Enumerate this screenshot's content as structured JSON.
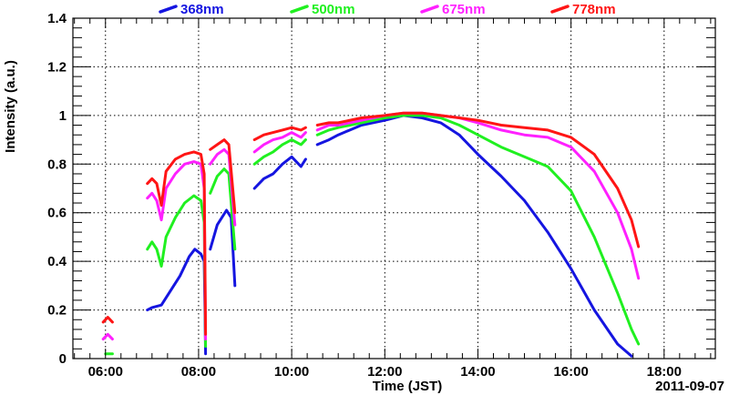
{
  "chart_data": {
    "type": "line",
    "title": "",
    "xlabel": "Time (JST)",
    "ylabel": "Intensity (a.u.)",
    "date_label": "2011-09-07",
    "x_unit": "hours",
    "xlim": [
      5.3,
      19.1
    ],
    "ylim": [
      0,
      1.4
    ],
    "x_ticks": [
      6,
      8,
      10,
      12,
      14,
      16,
      18
    ],
    "x_tick_labels": [
      "06:00",
      "08:00",
      "10:00",
      "12:00",
      "14:00",
      "16:00",
      "18:00"
    ],
    "y_ticks": [
      0,
      0.2,
      0.4,
      0.6,
      0.8,
      1,
      1.2,
      1.4
    ],
    "y_tick_labels": [
      "0",
      "0.2",
      "0.4",
      "0.6",
      "0.8",
      "1",
      "1.2",
      "1.4"
    ],
    "grid": true,
    "legend_position": "top",
    "series": [
      {
        "name": "368nm",
        "color": "#1515e0",
        "segments": [
          [
            [
              6.9,
              0.2
            ],
            [
              7.0,
              0.21
            ],
            [
              7.2,
              0.22
            ],
            [
              7.4,
              0.28
            ],
            [
              7.6,
              0.34
            ],
            [
              7.8,
              0.42
            ],
            [
              7.92,
              0.45
            ],
            [
              8.05,
              0.43
            ],
            [
              8.12,
              0.4
            ],
            [
              8.15,
              0.02
            ]
          ],
          [
            [
              8.25,
              0.45
            ],
            [
              8.4,
              0.55
            ],
            [
              8.6,
              0.61
            ],
            [
              8.7,
              0.58
            ],
            [
              8.78,
              0.3
            ]
          ],
          [
            [
              9.2,
              0.7
            ],
            [
              9.4,
              0.74
            ],
            [
              9.6,
              0.76
            ],
            [
              9.8,
              0.8
            ],
            [
              10.0,
              0.83
            ],
            [
              10.2,
              0.79
            ],
            [
              10.3,
              0.82
            ]
          ],
          [
            [
              10.55,
              0.88
            ],
            [
              10.8,
              0.9
            ],
            [
              11.0,
              0.92
            ],
            [
              11.5,
              0.96
            ],
            [
              12.0,
              0.98
            ],
            [
              12.4,
              1.0
            ],
            [
              12.8,
              0.99
            ],
            [
              13.2,
              0.97
            ],
            [
              13.6,
              0.92
            ],
            [
              14.0,
              0.84
            ],
            [
              14.5,
              0.75
            ],
            [
              15.0,
              0.65
            ],
            [
              15.5,
              0.52
            ],
            [
              16.0,
              0.37
            ],
            [
              16.5,
              0.2
            ],
            [
              17.0,
              0.06
            ],
            [
              17.3,
              0.01
            ]
          ]
        ]
      },
      {
        "name": "500nm",
        "color": "#20f020",
        "segments": [
          [
            [
              6.0,
              0.02
            ],
            [
              6.15,
              0.02
            ]
          ],
          [
            [
              6.9,
              0.45
            ],
            [
              7.0,
              0.48
            ],
            [
              7.1,
              0.45
            ],
            [
              7.2,
              0.38
            ],
            [
              7.3,
              0.5
            ],
            [
              7.5,
              0.58
            ],
            [
              7.7,
              0.64
            ],
            [
              7.9,
              0.67
            ],
            [
              8.05,
              0.65
            ],
            [
              8.12,
              0.56
            ],
            [
              8.15,
              0.05
            ]
          ],
          [
            [
              8.25,
              0.68
            ],
            [
              8.4,
              0.75
            ],
            [
              8.55,
              0.78
            ],
            [
              8.65,
              0.76
            ],
            [
              8.78,
              0.45
            ]
          ],
          [
            [
              9.2,
              0.8
            ],
            [
              9.4,
              0.83
            ],
            [
              9.6,
              0.85
            ],
            [
              9.8,
              0.88
            ],
            [
              10.0,
              0.9
            ],
            [
              10.2,
              0.88
            ],
            [
              10.3,
              0.9
            ]
          ],
          [
            [
              10.55,
              0.92
            ],
            [
              10.8,
              0.94
            ],
            [
              11.0,
              0.95
            ],
            [
              11.5,
              0.97
            ],
            [
              12.0,
              0.99
            ],
            [
              12.4,
              1.0
            ],
            [
              12.8,
              1.0
            ],
            [
              13.2,
              0.99
            ],
            [
              13.6,
              0.96
            ],
            [
              14.0,
              0.92
            ],
            [
              14.5,
              0.87
            ],
            [
              15.0,
              0.83
            ],
            [
              15.5,
              0.79
            ],
            [
              16.0,
              0.69
            ],
            [
              16.5,
              0.5
            ],
            [
              17.0,
              0.27
            ],
            [
              17.3,
              0.12
            ],
            [
              17.45,
              0.06
            ]
          ]
        ]
      },
      {
        "name": "675nm",
        "color": "#ff20ff",
        "segments": [
          [
            [
              5.95,
              0.08
            ],
            [
              6.05,
              0.1
            ],
            [
              6.15,
              0.08
            ]
          ],
          [
            [
              6.9,
              0.66
            ],
            [
              7.0,
              0.68
            ],
            [
              7.1,
              0.65
            ],
            [
              7.2,
              0.57
            ],
            [
              7.3,
              0.7
            ],
            [
              7.5,
              0.76
            ],
            [
              7.7,
              0.8
            ],
            [
              7.9,
              0.81
            ],
            [
              8.05,
              0.8
            ],
            [
              8.12,
              0.7
            ],
            [
              8.15,
              0.08
            ]
          ],
          [
            [
              8.25,
              0.8
            ],
            [
              8.4,
              0.84
            ],
            [
              8.55,
              0.86
            ],
            [
              8.65,
              0.84
            ],
            [
              8.78,
              0.55
            ]
          ],
          [
            [
              9.2,
              0.85
            ],
            [
              9.4,
              0.88
            ],
            [
              9.6,
              0.9
            ],
            [
              9.8,
              0.91
            ],
            [
              10.0,
              0.93
            ],
            [
              10.2,
              0.91
            ],
            [
              10.3,
              0.93
            ]
          ],
          [
            [
              10.55,
              0.94
            ],
            [
              10.8,
              0.96
            ],
            [
              11.0,
              0.96
            ],
            [
              11.5,
              0.98
            ],
            [
              12.0,
              1.0
            ],
            [
              12.4,
              1.01
            ],
            [
              12.8,
              1.01
            ],
            [
              13.2,
              1.0
            ],
            [
              13.6,
              0.99
            ],
            [
              14.0,
              0.97
            ],
            [
              14.5,
              0.94
            ],
            [
              15.0,
              0.92
            ],
            [
              15.5,
              0.91
            ],
            [
              16.0,
              0.87
            ],
            [
              16.5,
              0.77
            ],
            [
              17.0,
              0.6
            ],
            [
              17.3,
              0.45
            ],
            [
              17.45,
              0.33
            ]
          ]
        ]
      },
      {
        "name": "778nm",
        "color": "#ff1515",
        "segments": [
          [
            [
              5.95,
              0.15
            ],
            [
              6.05,
              0.17
            ],
            [
              6.15,
              0.15
            ]
          ],
          [
            [
              6.9,
              0.72
            ],
            [
              7.0,
              0.74
            ],
            [
              7.1,
              0.72
            ],
            [
              7.2,
              0.63
            ],
            [
              7.3,
              0.77
            ],
            [
              7.5,
              0.82
            ],
            [
              7.7,
              0.84
            ],
            [
              7.9,
              0.85
            ],
            [
              8.05,
              0.84
            ],
            [
              8.12,
              0.76
            ],
            [
              8.15,
              0.1
            ]
          ],
          [
            [
              8.25,
              0.86
            ],
            [
              8.4,
              0.88
            ],
            [
              8.55,
              0.9
            ],
            [
              8.65,
              0.88
            ],
            [
              8.78,
              0.6
            ]
          ],
          [
            [
              9.2,
              0.9
            ],
            [
              9.4,
              0.92
            ],
            [
              9.6,
              0.93
            ],
            [
              9.8,
              0.94
            ],
            [
              10.0,
              0.95
            ],
            [
              10.2,
              0.94
            ],
            [
              10.3,
              0.95
            ]
          ],
          [
            [
              10.55,
              0.96
            ],
            [
              10.8,
              0.97
            ],
            [
              11.0,
              0.97
            ],
            [
              11.5,
              0.99
            ],
            [
              12.0,
              1.0
            ],
            [
              12.4,
              1.01
            ],
            [
              12.8,
              1.01
            ],
            [
              13.2,
              1.0
            ],
            [
              13.6,
              0.99
            ],
            [
              14.0,
              0.98
            ],
            [
              14.5,
              0.96
            ],
            [
              15.0,
              0.95
            ],
            [
              15.5,
              0.94
            ],
            [
              16.0,
              0.91
            ],
            [
              16.5,
              0.84
            ],
            [
              17.0,
              0.7
            ],
            [
              17.3,
              0.57
            ],
            [
              17.45,
              0.46
            ]
          ]
        ]
      }
    ]
  }
}
